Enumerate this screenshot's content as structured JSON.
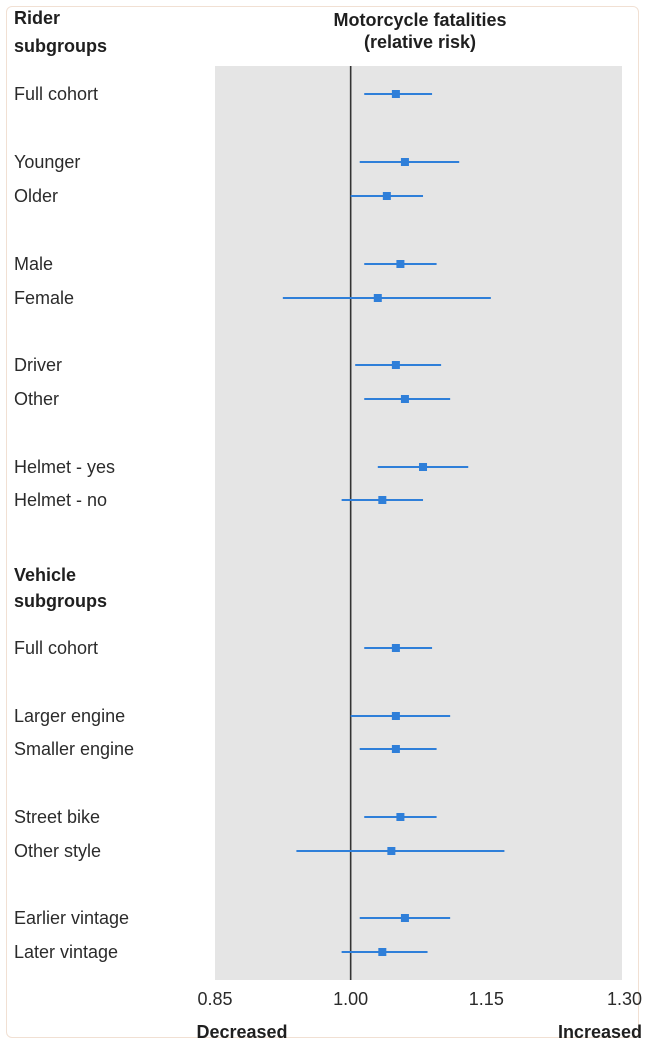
{
  "colors": {
    "panel": "#e5e5e5",
    "marker": "#2f7fd9",
    "reference_line": "#333333"
  },
  "chart_data": {
    "type": "forest",
    "title": "Motorcycle fatalities (relative risk)",
    "title_lines": [
      "Motorcycle fatalities",
      "(relative risk)"
    ],
    "reference_value": 1.0,
    "xlim": [
      0.85,
      1.3
    ],
    "xticks": [
      "0.85",
      "1.00",
      "1.15",
      "1.30"
    ],
    "x_direction_labels": {
      "left": "Decreased",
      "right": "Increased"
    },
    "grid": false,
    "groups": [
      {
        "heading_lines": [
          "Rider",
          "subgroups"
        ],
        "rows": [
          {
            "label": "Full cohort",
            "estimate": 1.05,
            "low": 1.015,
            "high": 1.09
          },
          {
            "label": "Younger",
            "estimate": 1.06,
            "low": 1.01,
            "high": 1.12
          },
          {
            "label": "Older",
            "estimate": 1.04,
            "low": 1.0,
            "high": 1.08
          },
          {
            "label": "Male",
            "estimate": 1.055,
            "low": 1.015,
            "high": 1.095
          },
          {
            "label": "Female",
            "estimate": 1.03,
            "low": 0.925,
            "high": 1.155
          },
          {
            "label": "Driver",
            "estimate": 1.05,
            "low": 1.005,
            "high": 1.1
          },
          {
            "label": "Other",
            "estimate": 1.06,
            "low": 1.015,
            "high": 1.11
          },
          {
            "label": "Helmet - yes",
            "estimate": 1.08,
            "low": 1.03,
            "high": 1.13
          },
          {
            "label": "Helmet - no",
            "estimate": 1.035,
            "low": 0.99,
            "high": 1.08
          }
        ]
      },
      {
        "heading_lines": [
          "Vehicle",
          "subgroups"
        ],
        "rows": [
          {
            "label": "Full cohort",
            "estimate": 1.05,
            "low": 1.015,
            "high": 1.09
          },
          {
            "label": "Larger engine",
            "estimate": 1.05,
            "low": 1.0,
            "high": 1.11
          },
          {
            "label": "Smaller engine",
            "estimate": 1.05,
            "low": 1.01,
            "high": 1.095
          },
          {
            "label": "Street bike",
            "estimate": 1.055,
            "low": 1.015,
            "high": 1.095
          },
          {
            "label": "Other style",
            "estimate": 1.045,
            "low": 0.94,
            "high": 1.17
          },
          {
            "label": "Earlier vintage",
            "estimate": 1.06,
            "low": 1.01,
            "high": 1.11
          },
          {
            "label": "Later vintage",
            "estimate": 1.035,
            "low": 0.99,
            "high": 1.085
          }
        ]
      }
    ]
  }
}
